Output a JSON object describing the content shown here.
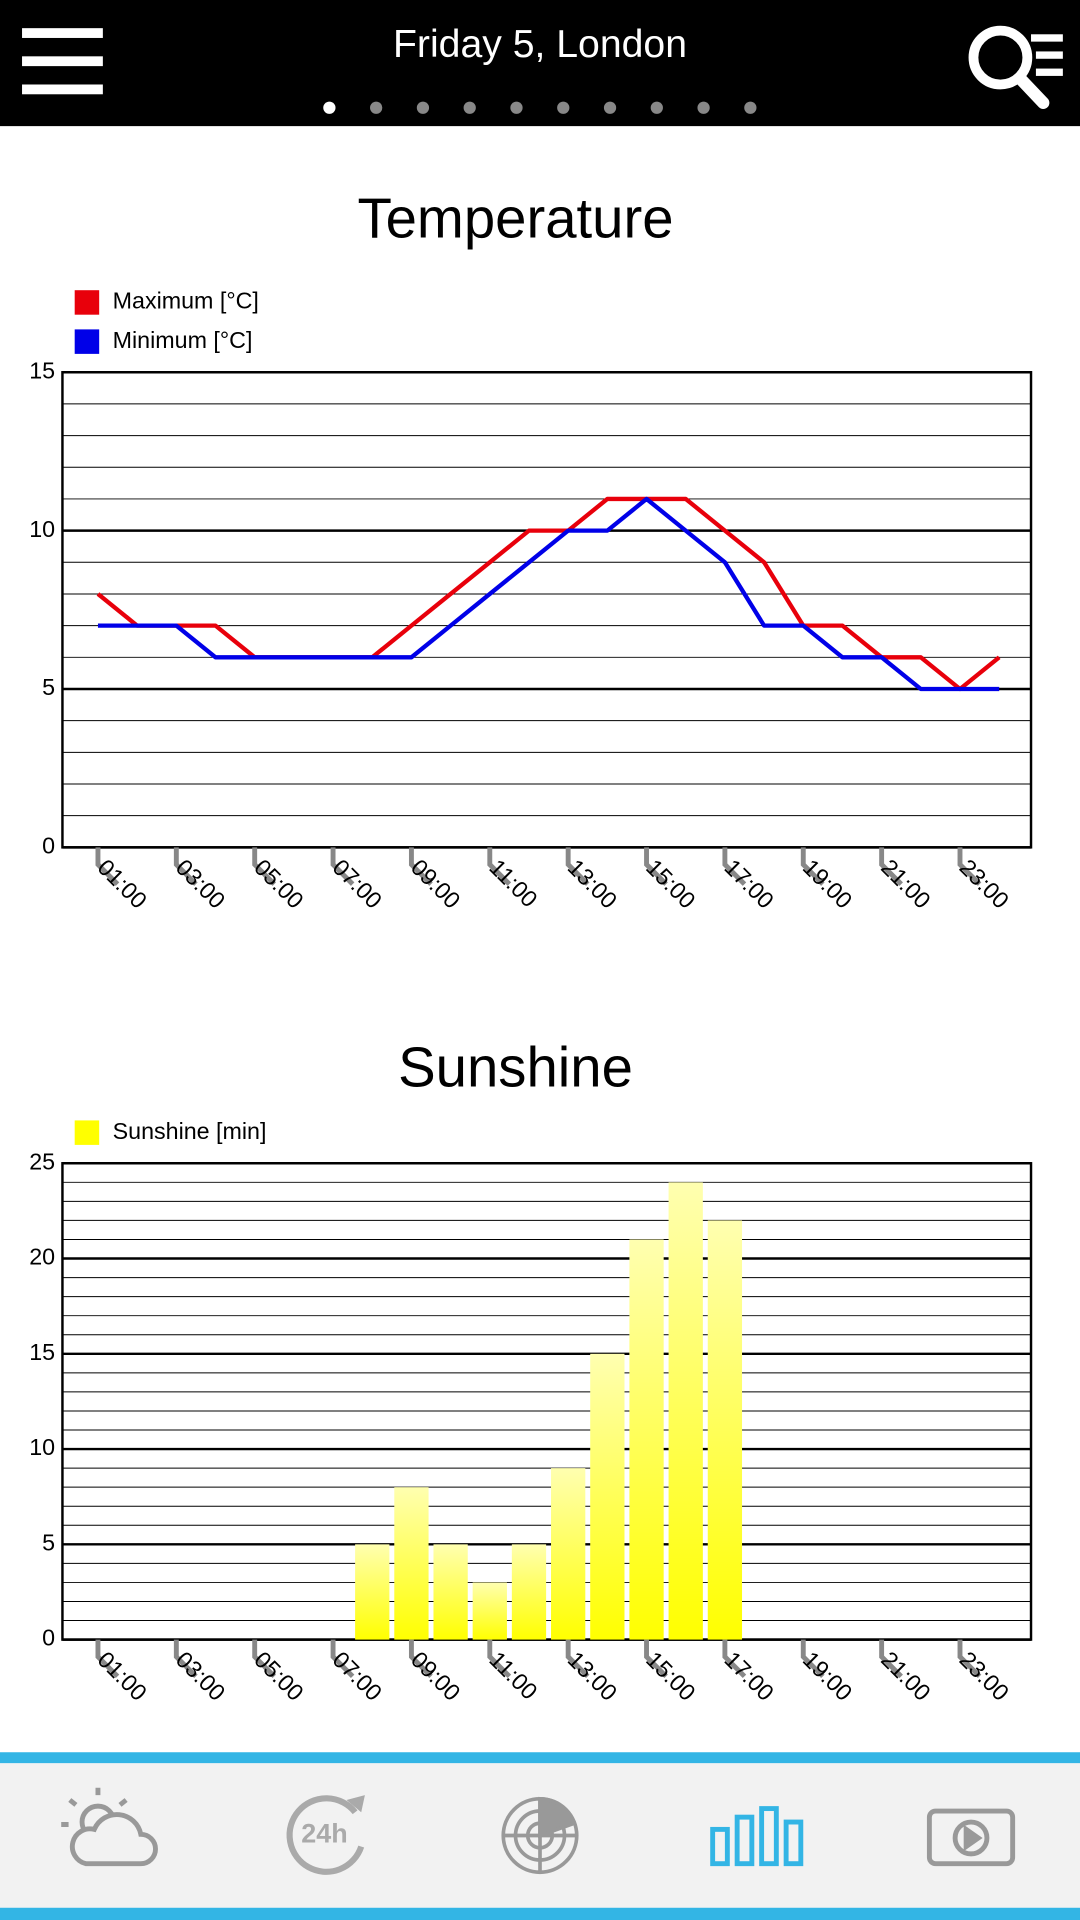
{
  "header": {
    "title": "Friday 5, London",
    "page_count": 10,
    "active_page": 0
  },
  "chart_data": [
    {
      "type": "line",
      "title": "Temperature",
      "categories": [
        "01:00",
        null,
        "03:00",
        null,
        "05:00",
        null,
        "07:00",
        null,
        "09:00",
        null,
        "11:00",
        null,
        "13:00",
        null,
        "15:00",
        null,
        "17:00",
        null,
        "19:00",
        null,
        "21:00",
        null,
        "23:00",
        null
      ],
      "series": [
        {
          "name": "Maximum [°C]",
          "color": "#e8000b",
          "values": [
            8,
            7,
            7,
            7,
            6,
            6,
            6,
            6,
            7,
            8,
            9,
            10,
            10,
            11,
            11,
            11,
            10,
            9,
            7,
            7,
            6,
            6,
            5,
            6
          ]
        },
        {
          "name": "Minimum [°C]",
          "color": "#0000e8",
          "values": [
            7,
            7,
            7,
            6,
            6,
            6,
            6,
            6,
            6,
            7,
            8,
            9,
            10,
            10,
            11,
            10,
            9,
            7,
            7,
            6,
            6,
            5,
            5,
            5
          ]
        }
      ],
      "ylim": [
        0,
        15
      ],
      "yticks": [
        0,
        5,
        10,
        15
      ],
      "grid": true,
      "minor_grid": 1
    },
    {
      "type": "bar",
      "title": "Sunshine",
      "categories": [
        "01:00",
        null,
        "03:00",
        null,
        "05:00",
        null,
        "07:00",
        null,
        "09:00",
        null,
        "11:00",
        null,
        "13:00",
        null,
        "15:00",
        null,
        "17:00",
        null,
        "19:00",
        null,
        "21:00",
        null,
        "23:00",
        null
      ],
      "series": [
        {
          "name": "Sunshine [min]",
          "color": "#ffff00",
          "values": [
            0,
            0,
            0,
            0,
            0,
            0,
            0,
            5,
            8,
            5,
            3,
            5,
            9,
            15,
            21,
            24,
            22,
            0,
            0,
            0,
            0,
            0,
            0,
            0
          ]
        }
      ],
      "ylim": [
        0,
        25
      ],
      "yticks": [
        0,
        5,
        10,
        15,
        20,
        25
      ],
      "grid": true,
      "minor_grid": 1
    }
  ]
}
